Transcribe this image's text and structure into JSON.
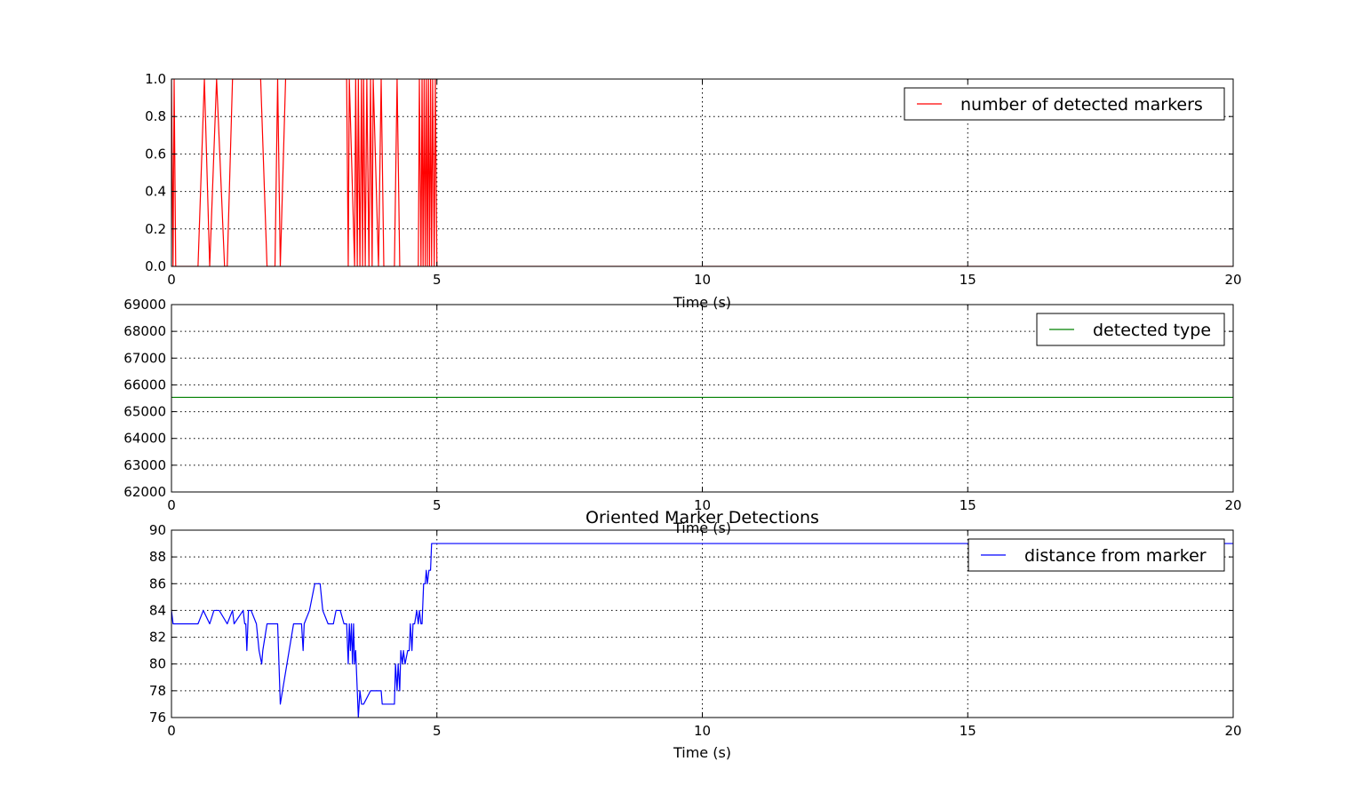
{
  "colors": {
    "red": "#ff0000",
    "green": "#008000",
    "blue": "#0000ff"
  },
  "chart_data": [
    {
      "type": "line",
      "title": "",
      "xlabel": "Time (s)",
      "ylabel": "",
      "xlim": [
        0,
        20
      ],
      "ylim": [
        0.0,
        1.0
      ],
      "xticks": [
        0,
        5,
        10,
        15,
        20
      ],
      "xtick_labels": [
        "0",
        "5",
        "10",
        "15",
        "20"
      ],
      "yticks": [
        0.0,
        0.2,
        0.4,
        0.6,
        0.8,
        1.0
      ],
      "ytick_labels": [
        "0.0",
        "0.2",
        "0.4",
        "0.6",
        "0.8",
        "1.0"
      ],
      "grid": true,
      "legend_position": "top-right",
      "series": [
        {
          "name": "number of detected markers",
          "color": "#ff0000",
          "x": [
            0,
            0.03,
            0.05,
            0.08,
            0.5,
            0.62,
            0.72,
            0.85,
            1.0,
            1.05,
            1.15,
            1.68,
            1.8,
            1.95,
            2.0,
            2.05,
            2.15,
            3.3,
            3.33,
            3.35,
            3.45,
            3.47,
            3.5,
            3.52,
            3.55,
            3.58,
            3.6,
            3.62,
            3.65,
            3.68,
            3.72,
            3.75,
            3.78,
            3.8,
            3.9,
            3.95,
            4.0,
            4.2,
            4.25,
            4.3,
            4.65,
            4.67,
            4.7,
            4.72,
            4.74,
            4.76,
            4.78,
            4.8,
            4.82,
            4.84,
            4.86,
            4.88,
            4.9,
            4.92,
            4.95,
            4.97,
            5.0,
            20
          ],
          "y": [
            1,
            0,
            1,
            0,
            0,
            1,
            0,
            1,
            0,
            0,
            1,
            1,
            0,
            0,
            1,
            0,
            1,
            1,
            0,
            1,
            0,
            1,
            0,
            1,
            0,
            1,
            0,
            1,
            0,
            1,
            0,
            1,
            0,
            1,
            0,
            1,
            0,
            0,
            1,
            0,
            0,
            1,
            0,
            1,
            0,
            1,
            0,
            1,
            0,
            1,
            0,
            1,
            0,
            1,
            0,
            1,
            0,
            0
          ]
        }
      ]
    },
    {
      "type": "line",
      "title": "",
      "xlabel": "Time (s)",
      "ylabel": "",
      "xlim": [
        0,
        20
      ],
      "ylim": [
        62000,
        69000
      ],
      "xticks": [
        0,
        5,
        10,
        15,
        20
      ],
      "xtick_labels": [
        "0",
        "5",
        "10",
        "15",
        "20"
      ],
      "yticks": [
        62000,
        63000,
        64000,
        65000,
        66000,
        67000,
        68000,
        69000
      ],
      "ytick_labels": [
        "62000",
        "63000",
        "64000",
        "65000",
        "66000",
        "67000",
        "68000",
        "69000"
      ],
      "grid": true,
      "legend_position": "top-right",
      "series": [
        {
          "name": "detected type",
          "color": "#008000",
          "x": [
            0,
            20
          ],
          "y": [
            65535,
            65535
          ]
        }
      ]
    },
    {
      "type": "line",
      "title": "Oriented Marker Detections",
      "xlabel": "Time (s)",
      "ylabel": "",
      "xlim": [
        0,
        20
      ],
      "ylim": [
        76,
        90
      ],
      "xticks": [
        0,
        5,
        10,
        15,
        20
      ],
      "xtick_labels": [
        "0",
        "5",
        "10",
        "15",
        "20"
      ],
      "yticks": [
        76,
        78,
        80,
        82,
        84,
        86,
        88,
        90
      ],
      "ytick_labels": [
        "76",
        "78",
        "80",
        "82",
        "84",
        "86",
        "88",
        "90"
      ],
      "grid": true,
      "legend_position": "top-right",
      "series": [
        {
          "name": "distance from marker",
          "color": "#0000ff",
          "x": [
            0,
            0.03,
            0.05,
            0.5,
            0.6,
            0.72,
            0.8,
            0.9,
            1.05,
            1.15,
            1.18,
            1.35,
            1.38,
            1.4,
            1.42,
            1.45,
            1.5,
            1.6,
            1.65,
            1.7,
            1.72,
            1.8,
            1.9,
            2.0,
            2.05,
            2.3,
            2.45,
            2.48,
            2.5,
            2.6,
            2.7,
            2.8,
            2.85,
            2.95,
            3.05,
            3.1,
            3.18,
            3.25,
            3.3,
            3.33,
            3.35,
            3.37,
            3.39,
            3.41,
            3.43,
            3.45,
            3.47,
            3.5,
            3.52,
            3.55,
            3.58,
            3.6,
            3.62,
            3.75,
            3.8,
            3.95,
            3.97,
            4.2,
            4.22,
            4.25,
            4.27,
            4.3,
            4.32,
            4.35,
            4.37,
            4.4,
            4.45,
            4.48,
            4.5,
            4.53,
            4.55,
            4.58,
            4.62,
            4.65,
            4.67,
            4.7,
            4.72,
            4.75,
            4.78,
            4.8,
            4.82,
            4.85,
            4.88,
            4.9,
            4.92,
            4.95,
            5.0,
            20
          ],
          "y": [
            84,
            83,
            83,
            83,
            84,
            83,
            84,
            84,
            83,
            84,
            83,
            84,
            83,
            83,
            81,
            84,
            84,
            83,
            81,
            80,
            81,
            83,
            83,
            83,
            77,
            83,
            83,
            81,
            83,
            84,
            86,
            86,
            84,
            83,
            83,
            84,
            84,
            83,
            83,
            80,
            83,
            81,
            83,
            80,
            83,
            80,
            81,
            78,
            76,
            78,
            77,
            77,
            77,
            78,
            78,
            78,
            77,
            77,
            80,
            78,
            80,
            78,
            81,
            80,
            81,
            80,
            81,
            81,
            83,
            81,
            83,
            83,
            84,
            83,
            84,
            83,
            83,
            86,
            86,
            87,
            86,
            87,
            87,
            89,
            89,
            89,
            89,
            89
          ]
        }
      ]
    }
  ]
}
